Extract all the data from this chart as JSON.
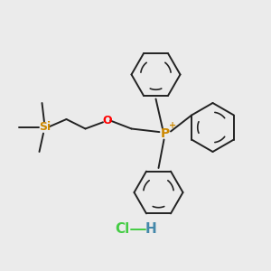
{
  "background_color": "#ebebeb",
  "si_color": "#cc8800",
  "o_color": "#ff0000",
  "p_color": "#cc8800",
  "bond_color": "#222222",
  "cl_color": "#44cc44",
  "h_color": "#4488aa",
  "line_width": 1.4,
  "figsize": [
    3.0,
    3.0
  ],
  "dpi": 100,
  "xlim": [
    0,
    10
  ],
  "ylim": [
    0,
    10
  ]
}
